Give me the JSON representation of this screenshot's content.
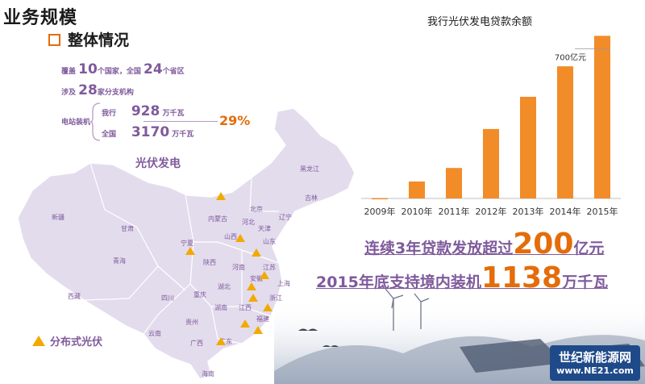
{
  "header": {
    "title": "业务规模",
    "section": "整体情况"
  },
  "stats": {
    "coverage_prefix": "覆盖",
    "countries": "10",
    "coverage_mid": "个国家，全国",
    "provinces": "24",
    "coverage_suffix": "个省区",
    "involve_prefix": "涉及",
    "branches": "28",
    "involve_suffix": "家分支机构",
    "station_label": "电站装机",
    "bank_label": "我行",
    "bank_value": "928",
    "bank_unit": "万千瓦",
    "national_label": "全国",
    "national_value": "3170",
    "national_unit": "万千瓦",
    "share": "29%",
    "caption": "光伏发电"
  },
  "map": {
    "provinces": [
      "黑龙江",
      "吉林",
      "辽宁",
      "内蒙古",
      "新疆",
      "西藏",
      "青海",
      "甘肃",
      "宁夏",
      "陕西",
      "山西",
      "河北",
      "北京",
      "天津",
      "山东",
      "河南",
      "江苏",
      "安徽",
      "湖北",
      "浙江",
      "上海",
      "四川",
      "重庆",
      "湖南",
      "江西",
      "福建",
      "贵州",
      "云南",
      "广西",
      "广东",
      "海南"
    ],
    "legend": "分布式光伏",
    "marker_color": "#f2a900"
  },
  "chart_data": {
    "type": "bar",
    "title": "我行光伏发电贷款余额",
    "categories": [
      "2009年",
      "2010年",
      "2011年",
      "2012年",
      "2013年",
      "2014年",
      "2015年"
    ],
    "values": [
      2,
      100,
      180,
      410,
      600,
      780,
      960
    ],
    "ylim": [
      0,
      1000
    ],
    "annotation": "700亿元",
    "color": "#f28c28",
    "grid": false
  },
  "highlights": {
    "line1_prefix": "连续3年贷款发放超过",
    "line1_num": "200",
    "line1_suffix": "亿元",
    "line2_prefix": "2015年底支持境内装机",
    "line2_num": "1138",
    "line2_suffix": "万千瓦"
  },
  "watermark": {
    "title": "世纪新能源网",
    "url": "www.NE21.com"
  }
}
